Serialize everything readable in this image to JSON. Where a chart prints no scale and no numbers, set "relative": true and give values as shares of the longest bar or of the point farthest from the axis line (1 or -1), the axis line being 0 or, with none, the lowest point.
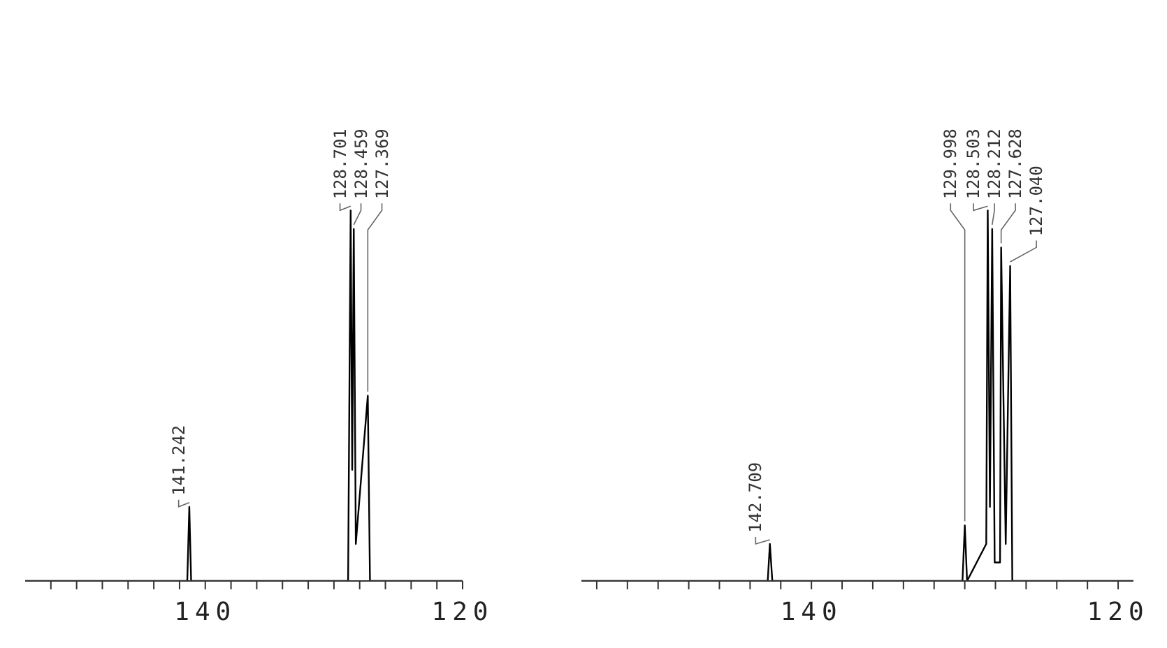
{
  "chart_data": [
    {
      "type": "line",
      "relative": true,
      "xlim": [
        154,
        120
      ],
      "xticks": [
        {
          "value": 152,
          "label": null
        },
        {
          "value": 150,
          "label": null
        },
        {
          "value": 148,
          "label": null
        },
        {
          "value": 146,
          "label": null
        },
        {
          "value": 144,
          "label": null
        },
        {
          "value": 142,
          "label": null
        },
        {
          "value": 140,
          "label": "140"
        },
        {
          "value": 138,
          "label": null
        },
        {
          "value": 136,
          "label": null
        },
        {
          "value": 134,
          "label": null
        },
        {
          "value": 132,
          "label": null
        },
        {
          "value": 130,
          "label": null
        },
        {
          "value": 128,
          "label": null
        },
        {
          "value": 126,
          "label": null
        },
        {
          "value": 124,
          "label": null
        },
        {
          "value": 122,
          "label": null
        },
        {
          "value": 120,
          "label": "120"
        }
      ],
      "tick_labels": "x",
      "grid": false,
      "marker": "none",
      "line_style": "solid",
      "series": [
        {
          "color": "#000000",
          "x": [
            154,
            141.4,
            141.242,
            141.1,
            128.9,
            128.701,
            128.58,
            128.459,
            128.3,
            127.369,
            127.2,
            120
          ],
          "values": [
            0,
            0,
            0.2,
            0,
            0,
            1,
            0.3,
            0.95,
            0.1,
            0.5,
            0,
            0
          ]
        }
      ],
      "annotations": [
        {
          "text": "141.242",
          "x": 141.242,
          "y": 0.2
        },
        {
          "text": "128.701",
          "x": 128.701,
          "y": 1
        },
        {
          "text": "128.459",
          "x": 128.459,
          "y": 0.95
        },
        {
          "text": "127.369",
          "x": 127.369,
          "y": 0.5
        }
      ]
    },
    {
      "type": "line",
      "relative": true,
      "xlim": [
        155,
        119
      ],
      "xticks": [
        {
          "value": 154,
          "label": null
        },
        {
          "value": 152,
          "label": null
        },
        {
          "value": 150,
          "label": null
        },
        {
          "value": 148,
          "label": null
        },
        {
          "value": 146,
          "label": null
        },
        {
          "value": 144,
          "label": null
        },
        {
          "value": 142,
          "label": null
        },
        {
          "value": 140,
          "label": "140"
        },
        {
          "value": 138,
          "label": null
        },
        {
          "value": 136,
          "label": null
        },
        {
          "value": 134,
          "label": null
        },
        {
          "value": 132,
          "label": null
        },
        {
          "value": 130,
          "label": null
        },
        {
          "value": 128,
          "label": null
        },
        {
          "value": 126,
          "label": null
        },
        {
          "value": 124,
          "label": null
        },
        {
          "value": 122,
          "label": null
        },
        {
          "value": 120,
          "label": "120"
        }
      ],
      "tick_labels": "x",
      "grid": false,
      "marker": "none",
      "line_style": "solid",
      "series": [
        {
          "color": "#000000",
          "x": [
            155,
            142.85,
            142.709,
            142.55,
            130.15,
            129.998,
            129.85,
            128.6,
            128.503,
            128.36,
            128.212,
            128.05,
            127.7,
            127.628,
            127.33,
            127.04,
            126.9,
            119
          ],
          "values": [
            0,
            0,
            0.1,
            0,
            0,
            0.15,
            0,
            0.1,
            1,
            0.2,
            0.95,
            0.05,
            0.05,
            0.9,
            0.1,
            0.85,
            0,
            0
          ]
        }
      ],
      "annotations": [
        {
          "text": "142.709",
          "x": 142.709,
          "y": 0.1
        },
        {
          "text": "129.998",
          "x": 129.998,
          "y": 0.15
        },
        {
          "text": "128.503",
          "x": 128.503,
          "y": 1
        },
        {
          "text": "128.212",
          "x": 128.212,
          "y": 0.95
        },
        {
          "text": "127.628",
          "x": 127.628,
          "y": 0.9
        },
        {
          "text": "127.040",
          "x": 127.04,
          "y": 0.85
        }
      ]
    }
  ]
}
